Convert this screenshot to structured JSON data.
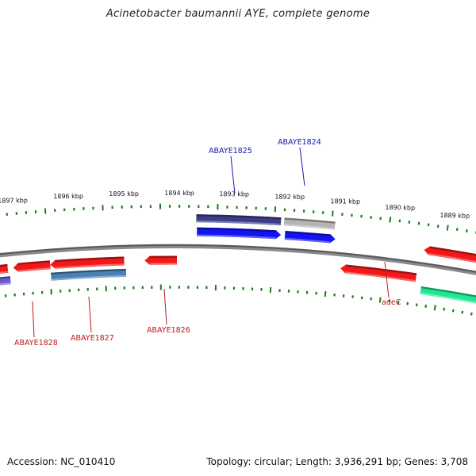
{
  "title": "Acinetobacter baumannii AYE, complete genome",
  "footer": {
    "accession": "Accession: NC_010410",
    "summary": "Topology: circular; Length: 3,936,291 bp; Genes: 3,708"
  },
  "colors": {
    "backbone": "#8a8a8a",
    "ticks": "#1f7a1f",
    "forward_label": "#1515b0",
    "reverse_label": "#c01818",
    "red": "#f01818",
    "blue": "#1414f0",
    "dark_blue": "#3c3c88",
    "grey": "#b4b4b4",
    "purple": "#6a5acd",
    "steel_blue": "#4a80b4",
    "green": "#20e890"
  },
  "kbp_labels": [
    "1897 kbp",
    "1896 kbp",
    "1895 kbp",
    "1894 kbp",
    "1893 kbp",
    "1892 kbp",
    "1891 kbp",
    "1890 kbp",
    "1889 kbp"
  ],
  "gene_labels": [
    {
      "name": "ABAYE1825",
      "strand": "forward"
    },
    {
      "name": "ABAYE1824",
      "strand": "forward"
    },
    {
      "name": "ABAYE1828",
      "strand": "reverse"
    },
    {
      "name": "ABAYE1827",
      "strand": "reverse"
    },
    {
      "name": "ABAYE1826",
      "strand": "reverse"
    },
    {
      "name": "adeC",
      "strand": "reverse"
    }
  ]
}
